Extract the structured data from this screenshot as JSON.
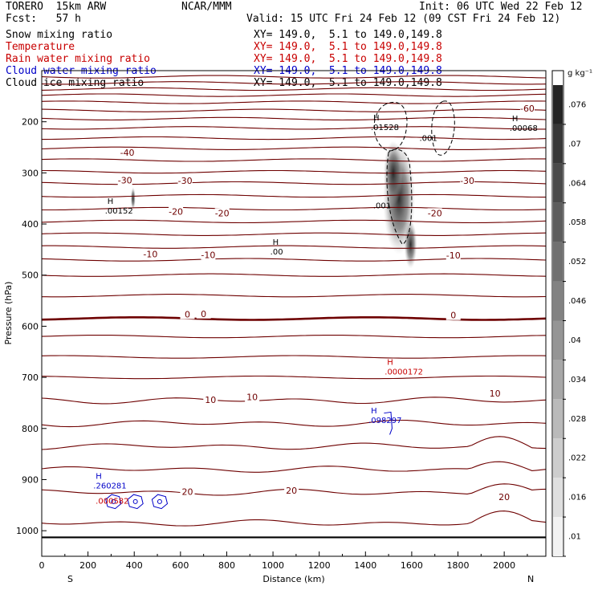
{
  "header": {
    "model": "TORERO  15km ARW",
    "center": "NCAR/MMM",
    "init": "Init: 06 UTC Wed 22 Feb 12",
    "fcst": "Fcst:   57 h",
    "valid": "Valid: 15 UTC Fri 24 Feb 12 (09 CST Fri 24 Feb 12)",
    "fields": [
      {
        "name": "Snow mixing ratio",
        "range": "XY= 149.0,  5.1 to 149.0,149.8",
        "color": "#000000"
      },
      {
        "name": "Temperature",
        "range": "XY= 149.0,  5.1 to 149.0,149.8",
        "color": "#c80000"
      },
      {
        "name": "Rain water mixing ratio",
        "range": "XY= 149.0,  5.1 to 149.0,149.8",
        "color": "#c80000"
      },
      {
        "name": "Cloud water mixing ratio",
        "range": "XY= 149.0,  5.1 to 149.0,149.8",
        "color": "#0000c8"
      },
      {
        "name": "Cloud ice mixing ratio",
        "range": "XY= 149.0,  5.1 to 149.0,149.8",
        "color": "#000000"
      }
    ]
  },
  "chart_data": {
    "type": "contour cross-section",
    "xlabel": "Distance (km)",
    "ylabel": "Pressure (hPa)",
    "xlim": [
      0,
      2180
    ],
    "ylim": [
      100,
      1050
    ],
    "x_ticks": [
      0,
      200,
      400,
      600,
      800,
      1000,
      1200,
      1400,
      1600,
      1800,
      2000
    ],
    "y_ticks": [
      200,
      300,
      400,
      500,
      600,
      700,
      800,
      900,
      1000
    ],
    "direction_left": "S",
    "direction_right": "N",
    "colorbar": {
      "unit": "g kg⁻¹",
      "levels": [
        ".01",
        ".016",
        ".022",
        ".028",
        ".034",
        ".04",
        ".046",
        ".052",
        ".058",
        ".064",
        ".07",
        ".076"
      ]
    },
    "contour_labels": [
      {
        "text": "-60",
        "x": 2100,
        "p": 175,
        "color": "#6e0000"
      },
      {
        "text": "-40",
        "x": 370,
        "p": 262,
        "color": "#6e0000"
      },
      {
        "text": "-30",
        "x": 360,
        "p": 316,
        "color": "#6e0000"
      },
      {
        "text": "-30",
        "x": 620,
        "p": 317,
        "color": "#6e0000"
      },
      {
        "text": "-30",
        "x": 1840,
        "p": 317,
        "color": "#6e0000"
      },
      {
        "text": "-20",
        "x": 580,
        "p": 377,
        "color": "#6e0000"
      },
      {
        "text": "-20",
        "x": 780,
        "p": 380,
        "color": "#6e0000"
      },
      {
        "text": "-20",
        "x": 1700,
        "p": 380,
        "color": "#6e0000"
      },
      {
        "text": "-10",
        "x": 470,
        "p": 460,
        "color": "#6e0000"
      },
      {
        "text": "-10",
        "x": 720,
        "p": 462,
        "color": "#6e0000"
      },
      {
        "text": "-10",
        "x": 1780,
        "p": 463,
        "color": "#6e0000"
      },
      {
        "text": "0",
        "x": 630,
        "p": 578,
        "color": "#6e0000"
      },
      {
        "text": "0",
        "x": 700,
        "p": 577,
        "color": "#6e0000"
      },
      {
        "text": "0",
        "x": 1780,
        "p": 580,
        "color": "#6e0000"
      },
      {
        "text": "10",
        "x": 730,
        "p": 745,
        "color": "#6e0000"
      },
      {
        "text": "10",
        "x": 910,
        "p": 740,
        "color": "#6e0000"
      },
      {
        "text": "10",
        "x": 1960,
        "p": 733,
        "color": "#6e0000"
      },
      {
        "text": "20",
        "x": 630,
        "p": 925,
        "color": "#6e0000"
      },
      {
        "text": "20",
        "x": 1080,
        "p": 923,
        "color": "#6e0000"
      },
      {
        "text": "20",
        "x": 2000,
        "p": 935,
        "color": "#6e0000"
      }
    ],
    "annotations": [
      {
        "h": "H",
        "value": ".01528",
        "x": 1510,
        "p": 207,
        "color": "#000000"
      },
      {
        "h": "",
        "value": ".001",
        "x": 1720,
        "p": 228,
        "color": "#000000"
      },
      {
        "h": "H",
        "value": ".00068",
        "x": 2110,
        "p": 208,
        "color": "#000000"
      },
      {
        "h": "H",
        "value": ".00152",
        "x": 360,
        "p": 370,
        "color": "#000000"
      },
      {
        "h": "",
        "value": ".001",
        "x": 1520,
        "p": 360,
        "color": "#000000"
      },
      {
        "h": "H",
        "value": ".00",
        "x": 1075,
        "p": 450,
        "color": "#000000"
      },
      {
        "h": "H",
        "value": ".0000172",
        "x": 1570,
        "p": 685,
        "color": "#c80000"
      },
      {
        "h": "H",
        "value": ".098297",
        "x": 1500,
        "p": 780,
        "color": "#0000c8"
      },
      {
        "h": "H",
        "value": ".260281",
        "x": 310,
        "p": 908,
        "color": "#0000c8"
      },
      {
        "h": "",
        "value": ".000582",
        "x": 320,
        "p": 938,
        "color": "#c80000"
      }
    ]
  }
}
